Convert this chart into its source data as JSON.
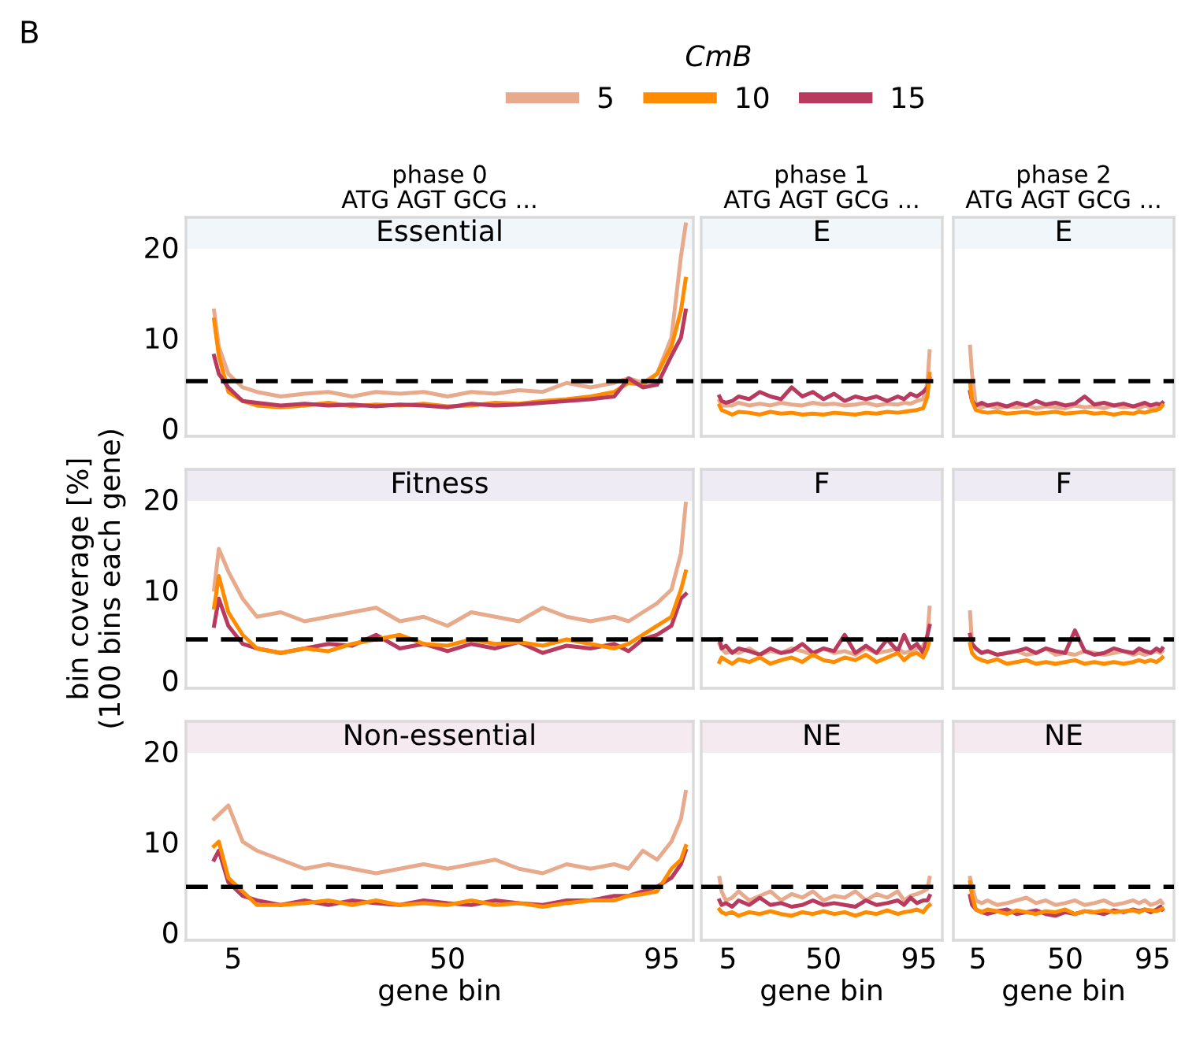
{
  "chart_data": [
    {
      "type": "line",
      "title": "Essential",
      "subtitle": "phase 0\nATG AGT GCG ...",
      "legend_title": "CmB",
      "legend": "top",
      "annotations": [
        "B"
      ],
      "tick_labels": "y",
      "grid": false,
      "x": [
        1,
        2,
        4,
        7,
        10,
        15,
        20,
        25,
        30,
        35,
        40,
        45,
        50,
        55,
        60,
        65,
        70,
        75,
        80,
        85,
        88,
        91,
        94,
        97,
        99,
        100
      ],
      "xlim": [
        -4.9,
        101.6
      ],
      "ylim": [
        -0.9,
        23.3
      ],
      "xticks": [
        5,
        50,
        95
      ],
      "yticks": [
        0,
        10,
        20
      ],
      "ref_lines": [
        {
          "axis": "y",
          "value": 5.2,
          "color": "#000000",
          "line_style": "dashed"
        }
      ],
      "series": [
        {
          "name": "5",
          "color": "#e8aa8c",
          "values": [
            13,
            9,
            6,
            4.5,
            4,
            3.5,
            3.8,
            4,
            3.5,
            4,
            3.8,
            4,
            3.5,
            4,
            3.8,
            4.2,
            4,
            5,
            4.5,
            5,
            5.5,
            5,
            6,
            10,
            19,
            22.5
          ]
        },
        {
          "name": "10",
          "color": "#ff8c00",
          "values": [
            12,
            8,
            4,
            3,
            2.5,
            2.3,
            2.5,
            2.8,
            2.4,
            2.6,
            2.5,
            2.7,
            2.4,
            2.5,
            2.8,
            2.7,
            3,
            3.2,
            3.5,
            4,
            5,
            4.8,
            6,
            9,
            13,
            16.5
          ]
        },
        {
          "name": "15",
          "color": "#b83a5e",
          "values": [
            8,
            6,
            4.5,
            3,
            2.8,
            2.5,
            2.7,
            2.5,
            2.6,
            2.4,
            2.6,
            2.5,
            2.3,
            2.7,
            2.5,
            2.6,
            2.8,
            3,
            3.2,
            3.5,
            5.5,
            4.5,
            4.8,
            8,
            10,
            13
          ]
        }
      ]
    },
    {
      "type": "line",
      "title": "E",
      "subtitle": "phase 1\nATG AGT GCG ...",
      "tick_labels": false,
      "grid": false,
      "x": [
        1,
        2,
        4,
        7,
        10,
        15,
        20,
        25,
        30,
        35,
        40,
        45,
        50,
        55,
        60,
        65,
        70,
        75,
        80,
        85,
        88,
        91,
        94,
        97,
        99,
        100
      ],
      "xlim": [
        -7.6,
        106
      ],
      "ylim": [
        -0.9,
        23.3
      ],
      "xticks": [
        5,
        50,
        95
      ],
      "yticks": [
        0,
        10,
        20
      ],
      "ref_lines": [
        {
          "axis": "y",
          "value": 5.2,
          "color": "#000000",
          "line_style": "dashed"
        }
      ],
      "series": [
        {
          "color": "#e8aa8c",
          "values": [
            3,
            2.5,
            2.5,
            2.5,
            2.8,
            2.5,
            2.7,
            2.5,
            2.8,
            2.6,
            2.5,
            2.8,
            2.6,
            2.7,
            2.5,
            2.6,
            2.8,
            2.5,
            2.7,
            2.6,
            2.8,
            2.7,
            3,
            3.2,
            5,
            8.5
          ]
        },
        {
          "color": "#b83a5e",
          "values": [
            3.5,
            3,
            2.8,
            3,
            3.5,
            3.2,
            4,
            3.5,
            3.2,
            4.5,
            3.5,
            4,
            3.2,
            3.8,
            3,
            3.5,
            3.2,
            3.5,
            3,
            3.5,
            3.2,
            3.8,
            3.5,
            4,
            4.5,
            5.5
          ]
        },
        {
          "color": "#ff8c00",
          "values": [
            2.5,
            2,
            1.8,
            1.5,
            1.8,
            1.7,
            1.5,
            1.8,
            1.6,
            1.7,
            1.5,
            1.6,
            1.5,
            1.7,
            1.6,
            1.5,
            1.7,
            1.6,
            1.8,
            1.7,
            1.8,
            1.9,
            2,
            2.2,
            3.5,
            6
          ]
        }
      ]
    },
    {
      "type": "line",
      "title": "E",
      "subtitle": "phase 2\nATG AGT GCG ...",
      "tick_labels": false,
      "grid": false,
      "x": [
        1,
        2,
        4,
        7,
        10,
        15,
        20,
        25,
        30,
        35,
        40,
        45,
        50,
        55,
        60,
        65,
        70,
        75,
        80,
        85,
        88,
        91,
        94,
        97,
        99,
        100
      ],
      "xlim": [
        -7.6,
        106
      ],
      "ylim": [
        -0.9,
        23.3
      ],
      "xticks": [
        5,
        50,
        95
      ],
      "yticks": [
        0,
        10,
        20
      ],
      "ref_lines": [
        {
          "axis": "y",
          "value": 5.2,
          "color": "#000000",
          "line_style": "dashed"
        }
      ],
      "series": [
        {
          "color": "#e8aa8c",
          "values": [
            9,
            6,
            2.5,
            2.3,
            2.5,
            2.2,
            2.4,
            2.3,
            2.5,
            2.2,
            2.4,
            2.3,
            2.2,
            2.5,
            2.3,
            2.4,
            2.2,
            2.5,
            2.3,
            2.4,
            2.2,
            2.5,
            2.3,
            2.4,
            2.6,
            2.5
          ]
        },
        {
          "color": "#b83a5e",
          "values": [
            4,
            3,
            2.5,
            2.8,
            2.5,
            2.7,
            2.4,
            2.8,
            2.5,
            3,
            2.6,
            2.8,
            2.5,
            2.7,
            3.5,
            2.6,
            2.8,
            2.5,
            2.7,
            2.4,
            2.6,
            2.8,
            2.5,
            2.7,
            2.6,
            2.8
          ]
        },
        {
          "color": "#ff8c00",
          "values": [
            5,
            3,
            2,
            1.8,
            1.7,
            1.8,
            1.6,
            1.7,
            1.8,
            1.6,
            1.7,
            1.8,
            1.6,
            1.7,
            1.8,
            1.6,
            1.7,
            1.5,
            1.7,
            1.6,
            1.8,
            1.7,
            1.9,
            2,
            2.2,
            2.5
          ]
        }
      ]
    },
    {
      "type": "line",
      "title": "Fitness",
      "ylabel": "bin coverage [%]\n(100 bins each gene)",
      "tick_labels": "y",
      "grid": false,
      "x": [
        1,
        2,
        4,
        7,
        10,
        15,
        20,
        25,
        30,
        35,
        40,
        45,
        50,
        55,
        60,
        65,
        70,
        75,
        80,
        85,
        88,
        91,
        94,
        97,
        99,
        100
      ],
      "xlim": [
        -4.9,
        101.6
      ],
      "ylim": [
        -0.9,
        23.3
      ],
      "xticks": [
        5,
        50,
        95
      ],
      "yticks": [
        0,
        10,
        20
      ],
      "ref_lines": [
        {
          "axis": "y",
          "value": 4.5,
          "color": "#000000",
          "line_style": "dashed"
        }
      ],
      "series": [
        {
          "color": "#e8aa8c",
          "values": [
            10,
            14.5,
            12,
            9,
            7,
            7.5,
            6.5,
            7,
            7.5,
            8,
            6.5,
            7,
            6,
            7.5,
            7,
            6.5,
            8,
            7,
            6.5,
            7,
            6.5,
            7.5,
            8.5,
            10,
            14,
            19.5
          ]
        },
        {
          "color": "#b83a5e",
          "values": [
            6,
            9,
            6,
            4,
            3.5,
            3,
            3.5,
            4,
            3.8,
            5,
            3.5,
            4,
            3.2,
            4,
            3.5,
            4.2,
            3,
            3.8,
            3.5,
            4,
            3.2,
            4.5,
            5,
            6,
            9,
            9.5
          ]
        },
        {
          "color": "#ff8c00",
          "values": [
            8,
            11.5,
            7.5,
            5,
            3.5,
            3,
            3.5,
            3.2,
            4,
            4.5,
            5,
            4,
            3.8,
            4.5,
            4,
            4.2,
            3.8,
            4.5,
            4,
            3.5,
            4,
            5,
            6,
            7,
            10,
            12
          ]
        }
      ]
    },
    {
      "type": "line",
      "title": "F",
      "tick_labels": false,
      "grid": false,
      "x": [
        1,
        2,
        4,
        7,
        10,
        15,
        20,
        25,
        30,
        35,
        40,
        45,
        50,
        55,
        60,
        65,
        70,
        75,
        80,
        85,
        88,
        91,
        94,
        97,
        99,
        100
      ],
      "xlim": [
        -7.6,
        106
      ],
      "ylim": [
        -0.9,
        23.3
      ],
      "xticks": [
        5,
        50,
        95
      ],
      "yticks": [
        0,
        10,
        20
      ],
      "ref_lines": [
        {
          "axis": "y",
          "value": 4.5,
          "color": "#000000",
          "line_style": "dashed"
        }
      ],
      "series": [
        {
          "color": "#e8aa8c",
          "values": [
            4,
            3.5,
            3,
            3.2,
            3,
            3.5,
            2.8,
            3.2,
            3,
            3.5,
            3.2,
            2.8,
            3.5,
            3,
            3.2,
            2.8,
            3.5,
            3,
            3.2,
            3.5,
            3,
            3.2,
            3.5,
            3.8,
            5,
            8
          ]
        },
        {
          "color": "#b83a5e",
          "values": [
            4.5,
            3.5,
            3.8,
            3,
            3.5,
            3.2,
            2.8,
            3.5,
            3,
            3.2,
            4,
            3,
            3.5,
            3.2,
            5,
            3,
            3.8,
            3,
            4.5,
            3.2,
            5,
            3.5,
            4,
            3,
            5,
            6
          ]
        },
        {
          "color": "#ff8c00",
          "values": [
            2,
            2.5,
            2.2,
            1.8,
            2.3,
            2,
            2.5,
            1.8,
            2.2,
            2.5,
            2,
            2.8,
            2.2,
            2,
            2.5,
            2.2,
            2.8,
            2,
            2.5,
            3,
            2.2,
            2.8,
            3,
            2.5,
            3.5,
            4.5
          ]
        }
      ]
    },
    {
      "type": "line",
      "title": "F",
      "tick_labels": false,
      "grid": false,
      "x": [
        1,
        2,
        4,
        7,
        10,
        15,
        20,
        25,
        30,
        35,
        40,
        45,
        50,
        55,
        60,
        65,
        70,
        75,
        80,
        85,
        88,
        91,
        94,
        97,
        99,
        100
      ],
      "xlim": [
        -7.6,
        106
      ],
      "ylim": [
        -0.9,
        23.3
      ],
      "xticks": [
        5,
        50,
        95
      ],
      "yticks": [
        0,
        10,
        20
      ],
      "ref_lines": [
        {
          "axis": "y",
          "value": 4.5,
          "color": "#000000",
          "line_style": "dashed"
        }
      ],
      "series": [
        {
          "color": "#e8aa8c",
          "values": [
            7.5,
            4,
            3.5,
            3,
            3.2,
            2.8,
            3,
            3.2,
            2.8,
            3,
            3.5,
            2.8,
            3,
            2.8,
            3.2,
            3,
            2.8,
            3,
            3.2,
            2.8,
            3,
            2.8,
            3,
            3.2,
            3,
            3.2
          ]
        },
        {
          "color": "#b83a5e",
          "values": [
            5,
            4,
            3.5,
            3,
            3.2,
            2.8,
            3,
            3.2,
            3.5,
            3,
            3.5,
            3.2,
            3,
            5.5,
            3.2,
            2.8,
            3,
            3.5,
            3.2,
            3,
            3.5,
            3.2,
            3,
            3.5,
            3.2,
            3.5
          ]
        },
        {
          "color": "#ff8c00",
          "values": [
            4,
            3,
            2.5,
            2.2,
            2,
            2.3,
            1.8,
            2,
            2.2,
            1.8,
            2,
            1.8,
            2,
            2.2,
            1.8,
            2,
            1.8,
            2,
            1.8,
            2,
            2.2,
            2,
            2.2,
            2,
            2.3,
            2.5
          ]
        }
      ]
    },
    {
      "type": "line",
      "title": "Non-essential",
      "xlabel": "gene bin",
      "grid": false,
      "x": [
        1,
        2,
        4,
        7,
        10,
        15,
        20,
        25,
        30,
        35,
        40,
        45,
        50,
        55,
        60,
        65,
        70,
        75,
        80,
        85,
        88,
        91,
        94,
        97,
        99,
        100
      ],
      "xlim": [
        -4.9,
        101.6
      ],
      "ylim": [
        -0.9,
        23.3
      ],
      "xticks": [
        5,
        50,
        95
      ],
      "yticks": [
        0,
        10,
        20
      ],
      "ref_lines": [
        {
          "axis": "y",
          "value": 5,
          "color": "#000000",
          "line_style": "dashed"
        }
      ],
      "series": [
        {
          "color": "#e8aa8c",
          "values": [
            12.5,
            13,
            14,
            10,
            9,
            8,
            7,
            7.5,
            7,
            6.5,
            7,
            7.5,
            7,
            7.5,
            8,
            7,
            6.5,
            7.5,
            7,
            7.5,
            7,
            9,
            8,
            10,
            12.5,
            15.5
          ]
        },
        {
          "color": "#b83a5e",
          "values": [
            8,
            9,
            5.5,
            4,
            3.5,
            3,
            3.5,
            3,
            3.5,
            3.2,
            3,
            3.5,
            3.2,
            3,
            3.5,
            3.2,
            3,
            3.5,
            3.5,
            4,
            4,
            4.5,
            5,
            6,
            7.5,
            9
          ]
        },
        {
          "color": "#ff8c00",
          "values": [
            9.5,
            10,
            6,
            4.5,
            3,
            3,
            3.2,
            3.5,
            3,
            3.5,
            3,
            3.2,
            3,
            3.5,
            3,
            3.2,
            2.8,
            3.2,
            3.5,
            3.5,
            4,
            4.2,
            4.5,
            7,
            8,
            9.5
          ]
        }
      ]
    },
    {
      "type": "line",
      "title": "NE",
      "xlabel": "gene bin",
      "tick_labels": "x",
      "grid": false,
      "x": [
        1,
        2,
        4,
        7,
        10,
        15,
        20,
        25,
        30,
        35,
        40,
        45,
        50,
        55,
        60,
        65,
        70,
        75,
        80,
        85,
        88,
        91,
        94,
        97,
        99,
        100
      ],
      "xlim": [
        -7.6,
        106
      ],
      "ylim": [
        -0.9,
        23.3
      ],
      "xticks": [
        5,
        50,
        95
      ],
      "yticks": [
        0,
        10,
        20
      ],
      "ref_lines": [
        {
          "axis": "y",
          "value": 5,
          "color": "#000000",
          "line_style": "dashed"
        }
      ],
      "series": [
        {
          "color": "#e8aa8c",
          "values": [
            6,
            4.5,
            3.5,
            3.8,
            4.5,
            3.5,
            4,
            4.5,
            3.5,
            4.2,
            3.8,
            4.5,
            3.5,
            4,
            3.8,
            4.5,
            3.5,
            4.2,
            3.8,
            4.5,
            3.5,
            4,
            4.2,
            4.5,
            4.8,
            6
          ]
        },
        {
          "color": "#b83a5e",
          "values": [
            3.5,
            3,
            3.2,
            2.8,
            3.5,
            3,
            3.8,
            3,
            3.2,
            2.8,
            3,
            3.5,
            3,
            3.2,
            3,
            2.8,
            3.5,
            3,
            3.2,
            3.5,
            3,
            3.8,
            3.2,
            3.5,
            3.5,
            4
          ]
        },
        {
          "color": "#ff8c00",
          "values": [
            2.5,
            2.2,
            2,
            2.2,
            1.8,
            2.2,
            2,
            2.3,
            2,
            1.8,
            2.2,
            2,
            2.3,
            2,
            2.2,
            1.8,
            2.2,
            2,
            2.4,
            2,
            2.2,
            2.3,
            2.5,
            2.2,
            2.8,
            3
          ]
        }
      ]
    },
    {
      "type": "line",
      "title": "NE",
      "xlabel": "gene bin",
      "tick_labels": "x",
      "grid": false,
      "x": [
        1,
        2,
        4,
        7,
        10,
        15,
        20,
        25,
        30,
        35,
        40,
        45,
        50,
        55,
        60,
        65,
        70,
        75,
        80,
        85,
        88,
        91,
        94,
        97,
        99,
        100
      ],
      "xlim": [
        -7.6,
        106
      ],
      "ylim": [
        -0.9,
        23.3
      ],
      "xticks": [
        5,
        50,
        95
      ],
      "yticks": [
        0,
        10,
        20
      ],
      "ref_lines": [
        {
          "axis": "y",
          "value": 5,
          "color": "#000000",
          "line_style": "dashed"
        }
      ],
      "series": [
        {
          "color": "#e8aa8c",
          "values": [
            6,
            5,
            3.5,
            3.2,
            3.5,
            3,
            3.2,
            3.5,
            3.8,
            3.2,
            3.5,
            3,
            3.2,
            3.5,
            3,
            3.2,
            3.5,
            3,
            3.2,
            3.5,
            3.2,
            3.5,
            3,
            3.2,
            3.5,
            3.2
          ]
        },
        {
          "color": "#b83a5e",
          "values": [
            4,
            3,
            2.5,
            2.2,
            2,
            2.3,
            2.5,
            2,
            2.2,
            2.4,
            2,
            1.8,
            2.2,
            2,
            2.3,
            2.2,
            2,
            2.4,
            2.2,
            2.5,
            2.3,
            2.5,
            2.2,
            2.5,
            2.8,
            2.5
          ]
        },
        {
          "color": "#ff8c00",
          "values": [
            5.5,
            4,
            2.5,
            2.2,
            2.5,
            2.3,
            2,
            2.4,
            2.2,
            2,
            2.3,
            2.2,
            2.5,
            2,
            2.3,
            2.2,
            2.4,
            2.2,
            2.3,
            2.4,
            2.2,
            2.5,
            2.4,
            2.3,
            2.5,
            2.6
          ]
        }
      ]
    }
  ]
}
